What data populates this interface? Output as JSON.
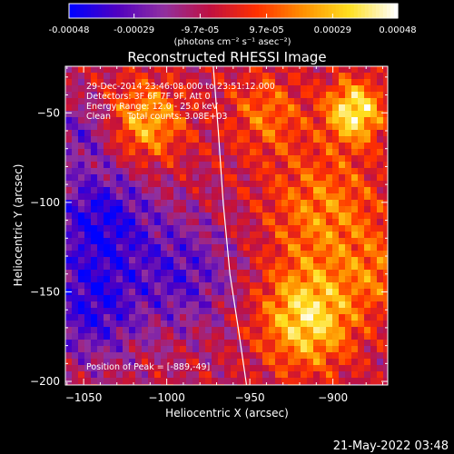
{
  "colorbar": {
    "tick_labels": [
      "-0.00048",
      "-0.00029",
      "-9.7e-05",
      "9.7e-05",
      "0.00029",
      "0.00048"
    ],
    "tick_values": [
      -0.00048,
      -0.00029,
      -9.7e-05,
      9.7e-05,
      0.00029,
      0.00048
    ],
    "range": [
      -0.00048,
      0.00048
    ],
    "unit_label": "(photons cm⁻² s⁻¹ asec⁻²)",
    "colors": [
      "#0000ff",
      "#5000c0",
      "#9030a0",
      "#c01040",
      "#ff3000",
      "#ff9000",
      "#ffe020",
      "#ffffff"
    ]
  },
  "chart_data": {
    "type": "heatmap",
    "title": "Reconstructed RHESSI Image",
    "xlabel": "Heliocentric X (arcsec)",
    "ylabel": "Heliocentric Y (arcsec)",
    "xlim": [
      -1061,
      -867
    ],
    "ylim": [
      -202,
      -24
    ],
    "x_ticks": [
      -1050,
      -1000,
      -950,
      -900
    ],
    "x_tick_labels": [
      "−1050",
      "−1000",
      "−950",
      "−900"
    ],
    "y_ticks": [
      -50,
      -100,
      -150,
      -200
    ],
    "y_tick_labels": [
      "−50",
      "−100",
      "−150",
      "−200"
    ],
    "info_lines": [
      "29-Dec-2014 23:46:08.000 to 23:51:12.000",
      "Detectors: 3F 6F 7F 9F, Att 0",
      "Energy Range: 12.0 - 25.0 keV",
      "Clean      Total counts: 3.08E+03"
    ],
    "peak_label": "Position of Peak = [-889,-49]",
    "peak": [
      -889,
      -49
    ],
    "limb_curve": [
      [
        -972,
        -24
      ],
      [
        -969,
        -60
      ],
      [
        -966,
        -100
      ],
      [
        -962,
        -140
      ],
      [
        -957,
        -170
      ],
      [
        -952,
        -202
      ]
    ],
    "limb_color": "#ffffff",
    "sources": [
      {
        "x": -1012,
        "y": -55,
        "amplitude": 0.00034,
        "sigma": 16
      },
      {
        "x": -887,
        "y": -49,
        "amplitude": 0.00048,
        "sigma": 12
      },
      {
        "x": -915,
        "y": -165,
        "amplitude": 0.00044,
        "sigma": 20
      },
      {
        "x": -905,
        "y": -105,
        "amplitude": 0.00026,
        "sigma": 25
      },
      {
        "x": -940,
        "y": -50,
        "amplitude": 0.00022,
        "sigma": 16
      },
      {
        "x": -870,
        "y": -140,
        "amplitude": 0.00018,
        "sigma": 16
      },
      {
        "x": -1040,
        "y": -110,
        "amplitude": -0.00034,
        "sigma": 22
      },
      {
        "x": -1045,
        "y": -160,
        "amplitude": -0.0003,
        "sigma": 20
      },
      {
        "x": -990,
        "y": -140,
        "amplitude": -0.00024,
        "sigma": 22
      },
      {
        "x": -1050,
        "y": -60,
        "amplitude": -0.00018,
        "sigma": 12
      }
    ]
  },
  "footer": {
    "timestamp": "21-May-2022 03:48"
  }
}
